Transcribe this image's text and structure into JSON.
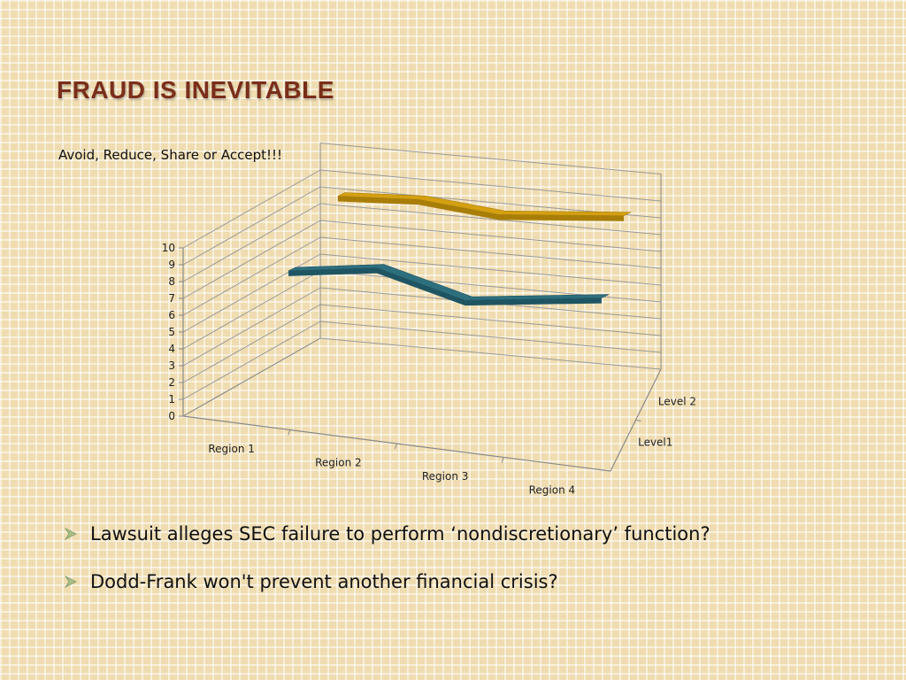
{
  "title": "FRAUD IS INEVITABLE",
  "subtitle": "Avoid, Reduce, Share or Accept!!!",
  "bullets": [
    "Lawsuit alleges SEC failure to perform ‘nondiscretionary’ function?",
    "Dodd-Frank won't prevent another financial crisis?"
  ],
  "colors": {
    "title": "#7a2e1a",
    "level1": "#2e6f7e",
    "level2": "#d4a012",
    "bullet": "#a9bf8a"
  },
  "chart_data": {
    "type": "line",
    "style": "3d",
    "categories": [
      "Region 1",
      "Region 2",
      "Region 3",
      "Region 4"
    ],
    "series": [
      {
        "name": "Level1",
        "values": [
          7.7,
          8.5,
          7.2,
          8.3
        ]
      },
      {
        "name": "Level 2",
        "values": [
          10.2,
          10.5,
          10.1,
          10.8
        ]
      }
    ],
    "ylim": [
      0,
      10
    ],
    "yticks": [
      "0",
      "1",
      "2",
      "3",
      "4",
      "5",
      "6",
      "7",
      "8",
      "9",
      "10"
    ],
    "grid": true,
    "legend": "none"
  }
}
